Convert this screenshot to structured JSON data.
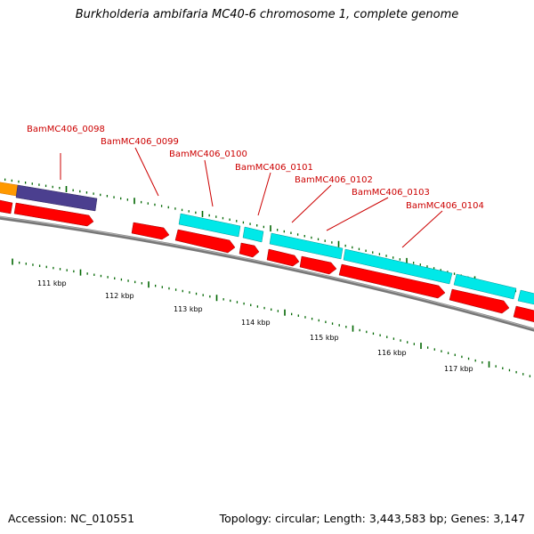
{
  "title": "Burkholderia ambifaria MC40-6 chromosome 1, complete genome",
  "accession": "Accession: NC_010551",
  "summary": "Topology: circular; Length: 3,443,583 bp; Genes: 3,147",
  "colors": {
    "cds": "#ff0000",
    "gene": "#00ffff",
    "other_gene": "#4b3f8f",
    "other_feature": "#ff9900",
    "label": "#cc0000",
    "tick": "#006600",
    "backbone": "#808080"
  },
  "gene_labels": [
    "BamMC406_0098",
    "BamMC406_0099",
    "BamMC406_0100",
    "BamMC406_0101",
    "BamMC406_0102",
    "BamMC406_0103",
    "BamMC406_0104"
  ],
  "tick_labels": [
    "111 kbp",
    "112 kbp",
    "113 kbp",
    "114 kbp",
    "115 kbp",
    "116 kbp",
    "117 kbp"
  ]
}
